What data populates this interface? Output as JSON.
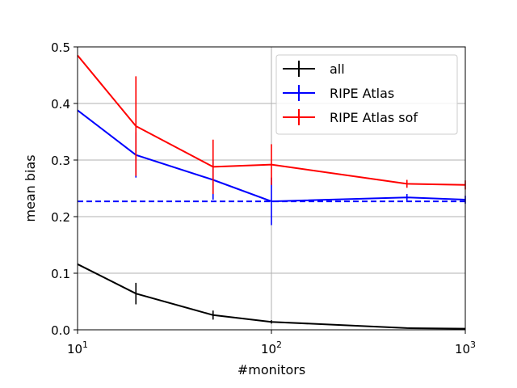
{
  "chart_data": {
    "type": "line",
    "xlabel": "#monitors",
    "ylabel": "mean bias",
    "xscale": "log",
    "xlim": [
      10,
      1000
    ],
    "ylim": [
      0,
      0.5
    ],
    "x_ticks": [
      {
        "value": 10,
        "base": "10",
        "exp": "1"
      },
      {
        "value": 100,
        "base": "10",
        "exp": "2"
      },
      {
        "value": 1000,
        "base": "10",
        "exp": "3"
      }
    ],
    "y_ticks": [
      "0.0",
      "0.1",
      "0.2",
      "0.3",
      "0.4",
      "0.5"
    ],
    "grid": true,
    "legend_position": "top-right",
    "series": [
      {
        "name": "all",
        "color": "#000000",
        "points": [
          {
            "x": 10,
            "y": 0.116,
            "err": 0
          },
          {
            "x": 20,
            "y": 0.064,
            "err": 0.019
          },
          {
            "x": 50,
            "y": 0.026,
            "err": 0.008
          },
          {
            "x": 100,
            "y": 0.014,
            "err": 0.003
          },
          {
            "x": 500,
            "y": 0.003,
            "err": 0
          },
          {
            "x": 1000,
            "y": 0.002,
            "err": 0
          }
        ]
      },
      {
        "name": "RIPE Atlas",
        "color": "#0000ff",
        "points": [
          {
            "x": 10,
            "y": 0.388,
            "err": 0
          },
          {
            "x": 20,
            "y": 0.309,
            "err": 0.04
          },
          {
            "x": 50,
            "y": 0.265,
            "err": 0.035
          },
          {
            "x": 100,
            "y": 0.227,
            "err": 0.042
          },
          {
            "x": 500,
            "y": 0.234,
            "err": 0.006
          },
          {
            "x": 1000,
            "y": 0.23,
            "err": 0.007
          }
        ]
      },
      {
        "name": "RIPE Atlas sof",
        "color": "#ff0000",
        "points": [
          {
            "x": 10,
            "y": 0.485,
            "err": 0
          },
          {
            "x": 20,
            "y": 0.36,
            "err": 0.088
          },
          {
            "x": 50,
            "y": 0.288,
            "err": 0.048
          },
          {
            "x": 100,
            "y": 0.292,
            "err": 0.036
          },
          {
            "x": 500,
            "y": 0.258,
            "err": 0.007
          },
          {
            "x": 1000,
            "y": 0.256,
            "err": 0.008
          }
        ]
      }
    ],
    "reference_line": {
      "y": 0.227,
      "color": "#0000ff",
      "style": "dashed"
    }
  }
}
